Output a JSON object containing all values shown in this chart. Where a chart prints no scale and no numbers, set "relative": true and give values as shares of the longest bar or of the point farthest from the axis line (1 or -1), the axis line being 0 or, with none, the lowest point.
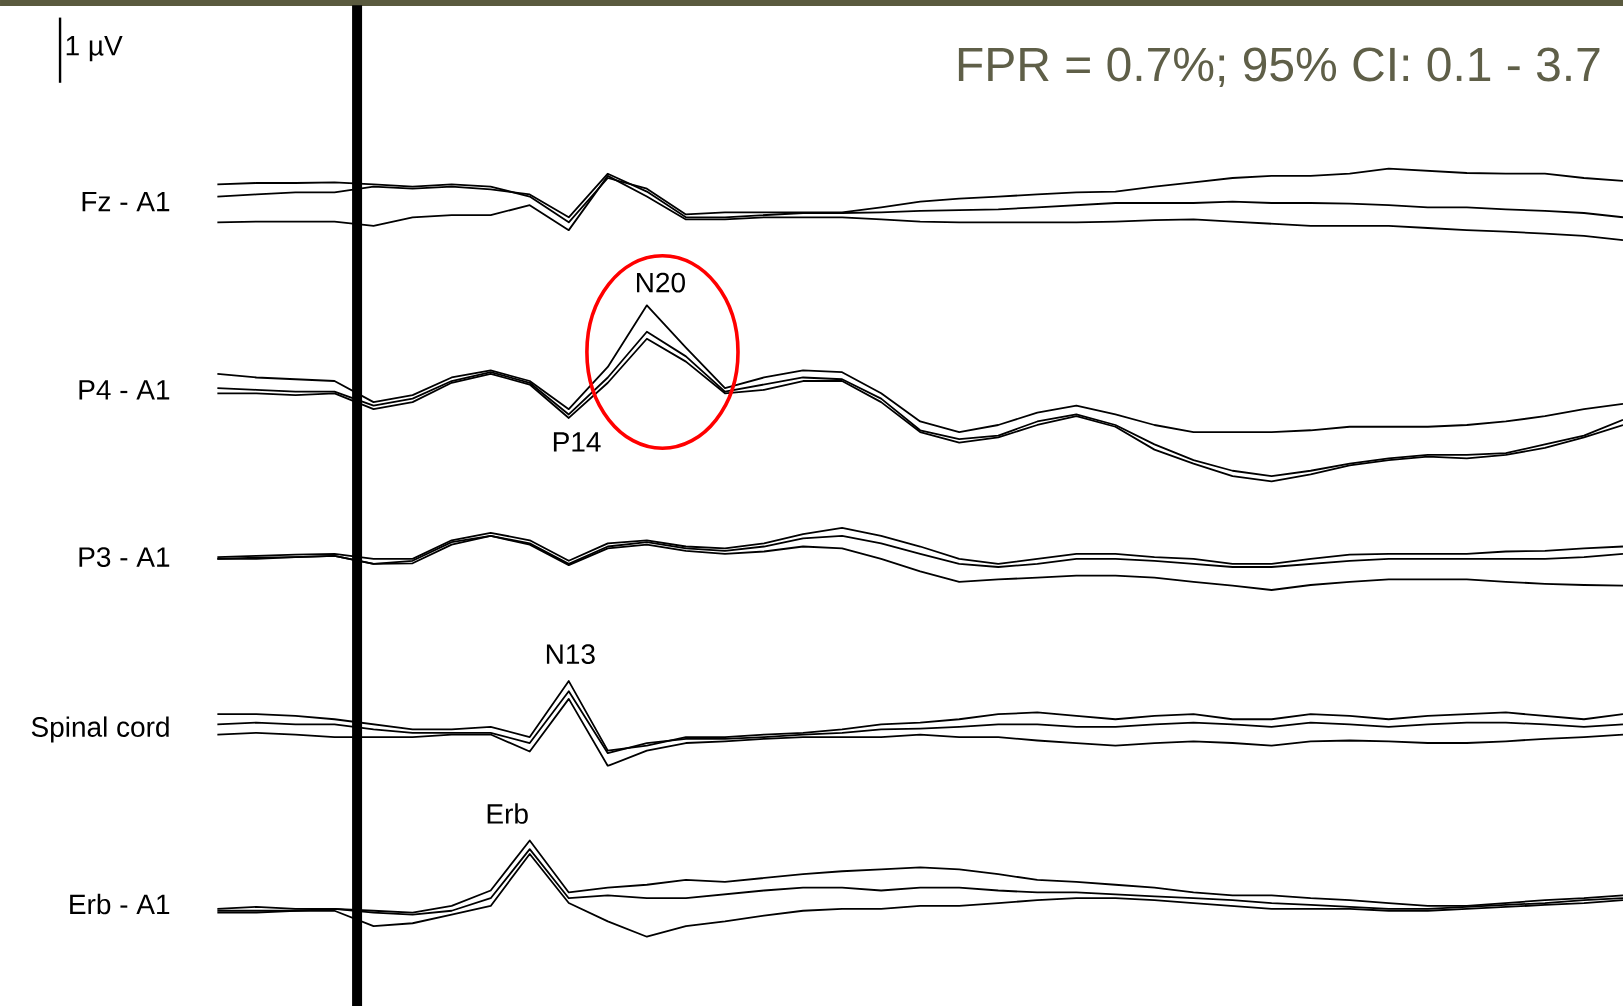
{
  "chart_data": [
    {
      "type": "line",
      "title": "FPR = 0.7%; 95% CI: 0.1 - 3.7",
      "ylabel": "Fz - A1",
      "relative": true,
      "annotations": [
        "1 µV"
      ],
      "categories": [
        null,
        null,
        null,
        null,
        null,
        null,
        null,
        null,
        null,
        null,
        null,
        null,
        null,
        null,
        null,
        null,
        null,
        null,
        null,
        null,
        null,
        null,
        null,
        null,
        null,
        null,
        null,
        null,
        null,
        null,
        null,
        null,
        null,
        null,
        null,
        null,
        null
      ],
      "series": [
        {
          "color": "#000000",
          "values": [
            0.78,
            0.8,
            0.8,
            0.81,
            0.78,
            0.75,
            0.78,
            0.75,
            0.61,
            0.25,
            0.87,
            0.72,
            0.36,
            0.39,
            0.39,
            0.39,
            0.39,
            0.46,
            0.54,
            0.58,
            0.61,
            0.64,
            0.67,
            0.68,
            0.75,
            0.81,
            0.87,
            0.9,
            0.9,
            0.93,
            1.0,
            0.97,
            0.94,
            0.93,
            0.93,
            0.87,
            0.83
          ]
        },
        {
          "color": "#000000",
          "values": [
            0.61,
            0.64,
            0.67,
            0.67,
            0.75,
            0.72,
            0.75,
            0.71,
            0.64,
            0.32,
            0.93,
            0.68,
            0.32,
            0.32,
            0.35,
            0.38,
            0.38,
            0.39,
            0.41,
            0.42,
            0.43,
            0.46,
            0.49,
            0.52,
            0.52,
            0.52,
            0.54,
            0.52,
            0.52,
            0.51,
            0.49,
            0.46,
            0.46,
            0.43,
            0.41,
            0.38,
            0.32
          ]
        },
        {
          "color": "#000000",
          "values": [
            0.25,
            0.26,
            0.26,
            0.26,
            0.2,
            0.32,
            0.35,
            0.35,
            0.49,
            0.14,
            0.9,
            0.61,
            0.29,
            0.29,
            0.32,
            0.32,
            0.32,
            0.29,
            0.26,
            0.25,
            0.25,
            0.25,
            0.25,
            0.26,
            0.28,
            0.29,
            0.26,
            0.23,
            0.2,
            0.2,
            0.2,
            0.17,
            0.14,
            0.12,
            0.09,
            0.06,
            0
          ]
        }
      ]
    },
    {
      "type": "line",
      "ylabel": "P4 - A1",
      "relative": true,
      "annotations": [
        "N20",
        "P14"
      ],
      "categories": [
        null,
        null,
        null,
        null,
        null,
        null,
        null,
        null,
        null,
        null,
        null,
        null,
        null,
        null,
        null,
        null,
        null,
        null,
        null,
        null,
        null,
        null,
        null,
        null,
        null,
        null,
        null,
        null,
        null,
        null,
        null,
        null,
        null,
        null,
        null,
        null,
        null
      ],
      "series": [
        {
          "color": "#000000",
          "values": [
            0.61,
            0.59,
            0.58,
            0.57,
            0.45,
            0.49,
            0.59,
            0.63,
            0.57,
            0.41,
            0.65,
            1.0,
            0.76,
            0.53,
            0.59,
            0.63,
            0.62,
            0.5,
            0.34,
            0.28,
            0.32,
            0.39,
            0.43,
            0.38,
            0.32,
            0.28,
            0.28,
            0.28,
            0.29,
            0.31,
            0.31,
            0.31,
            0.32,
            0.34,
            0.37,
            0.41,
            0.44
          ]
        },
        {
          "color": "#000000",
          "values": [
            0.53,
            0.52,
            0.51,
            0.51,
            0.43,
            0.47,
            0.57,
            0.62,
            0.56,
            0.38,
            0.59,
            0.85,
            0.71,
            0.51,
            0.55,
            0.59,
            0.58,
            0.47,
            0.29,
            0.24,
            0.26,
            0.34,
            0.38,
            0.32,
            0.21,
            0.12,
            0.06,
            0.03,
            0.06,
            0.1,
            0.13,
            0.15,
            0.15,
            0.16,
            0.21,
            0.26,
            0.35
          ]
        },
        {
          "color": "#000000",
          "values": [
            0.5,
            0.5,
            0.49,
            0.5,
            0.41,
            0.45,
            0.56,
            0.61,
            0.55,
            0.36,
            0.56,
            0.81,
            0.68,
            0.5,
            0.52,
            0.57,
            0.57,
            0.45,
            0.28,
            0.22,
            0.25,
            0.32,
            0.37,
            0.31,
            0.18,
            0.1,
            0.03,
            0,
            0.04,
            0.09,
            0.12,
            0.14,
            0.13,
            0.15,
            0.19,
            0.25,
            0.32
          ]
        }
      ]
    },
    {
      "type": "line",
      "ylabel": "P3 - A1",
      "relative": true,
      "categories": [
        null,
        null,
        null,
        null,
        null,
        null,
        null,
        null,
        null,
        null,
        null,
        null,
        null,
        null,
        null,
        null,
        null,
        null,
        null,
        null,
        null,
        null,
        null,
        null,
        null,
        null,
        null,
        null,
        null,
        null,
        null,
        null,
        null,
        null,
        null,
        null,
        null
      ],
      "series": [
        {
          "color": "#000000",
          "values": [
            0.53,
            0.55,
            0.57,
            0.58,
            0.5,
            0.5,
            0.8,
            0.92,
            0.8,
            0.47,
            0.75,
            0.8,
            0.7,
            0.67,
            0.75,
            0.9,
            1.0,
            0.87,
            0.7,
            0.5,
            0.42,
            0.5,
            0.58,
            0.58,
            0.53,
            0.5,
            0.42,
            0.42,
            0.5,
            0.57,
            0.58,
            0.58,
            0.58,
            0.62,
            0.63,
            0.67,
            0.7
          ]
        },
        {
          "color": "#000000",
          "values": [
            0.5,
            0.52,
            0.53,
            0.55,
            0.42,
            0.47,
            0.77,
            0.87,
            0.75,
            0.42,
            0.7,
            0.77,
            0.67,
            0.63,
            0.7,
            0.83,
            0.87,
            0.75,
            0.58,
            0.42,
            0.37,
            0.42,
            0.5,
            0.5,
            0.47,
            0.42,
            0.37,
            0.37,
            0.42,
            0.47,
            0.5,
            0.5,
            0.5,
            0.5,
            0.5,
            0.53,
            0.58
          ]
        },
        {
          "color": "#000000",
          "values": [
            0.5,
            0.5,
            0.53,
            0.55,
            0.42,
            0.43,
            0.73,
            0.87,
            0.73,
            0.4,
            0.67,
            0.73,
            0.63,
            0.58,
            0.62,
            0.7,
            0.67,
            0.5,
            0.3,
            0.13,
            0.17,
            0.2,
            0.23,
            0.23,
            0.2,
            0.13,
            0.07,
            0,
            0.08,
            0.13,
            0.17,
            0.17,
            0.17,
            0.13,
            0.1,
            0.08,
            0.07
          ]
        }
      ]
    },
    {
      "type": "line",
      "ylabel": "Spinal cord",
      "relative": true,
      "annotations": [
        "N13"
      ],
      "categories": [
        null,
        null,
        null,
        null,
        null,
        null,
        null,
        null,
        null,
        null,
        null,
        null,
        null,
        null,
        null,
        null,
        null,
        null,
        null,
        null,
        null,
        null,
        null,
        null,
        null,
        null,
        null,
        null,
        null,
        null,
        null,
        null,
        null,
        null,
        null,
        null,
        null
      ],
      "series": [
        {
          "color": "#000000",
          "values": [
            0.61,
            0.61,
            0.59,
            0.55,
            0.49,
            0.43,
            0.43,
            0.46,
            0.34,
            1.0,
            0.18,
            0.24,
            0.34,
            0.34,
            0.37,
            0.39,
            0.43,
            0.49,
            0.51,
            0.55,
            0.61,
            0.63,
            0.59,
            0.55,
            0.59,
            0.61,
            0.55,
            0.55,
            0.61,
            0.59,
            0.55,
            0.59,
            0.61,
            0.63,
            0.59,
            0.55,
            0.61
          ]
        },
        {
          "color": "#000000",
          "values": [
            0.49,
            0.51,
            0.49,
            0.49,
            0.43,
            0.39,
            0.39,
            0.39,
            0.27,
            0.88,
            0.15,
            0.27,
            0.32,
            0.32,
            0.34,
            0.37,
            0.39,
            0.43,
            0.44,
            0.46,
            0.49,
            0.49,
            0.46,
            0.46,
            0.49,
            0.51,
            0.49,
            0.46,
            0.51,
            0.49,
            0.46,
            0.49,
            0.51,
            0.51,
            0.49,
            0.46,
            0.49
          ]
        },
        {
          "color": "#000000",
          "values": [
            0.37,
            0.39,
            0.37,
            0.34,
            0.34,
            0.34,
            0.37,
            0.37,
            0.17,
            0.79,
            0,
            0.18,
            0.27,
            0.29,
            0.32,
            0.34,
            0.34,
            0.34,
            0.37,
            0.34,
            0.34,
            0.3,
            0.27,
            0.24,
            0.27,
            0.29,
            0.27,
            0.24,
            0.29,
            0.3,
            0.29,
            0.27,
            0.27,
            0.29,
            0.32,
            0.34,
            0.37
          ]
        }
      ]
    },
    {
      "type": "line",
      "ylabel": "Erb - A1",
      "relative": true,
      "annotations": [
        "Erb"
      ],
      "categories": [
        null,
        null,
        null,
        null,
        null,
        null,
        null,
        null,
        null,
        null,
        null,
        null,
        null,
        null,
        null,
        null,
        null,
        null,
        null,
        null,
        null,
        null,
        null,
        null,
        null,
        null,
        null,
        null,
        null,
        null,
        null,
        null,
        null,
        null,
        null,
        null,
        null
      ],
      "series": [
        {
          "color": "#000000",
          "values": [
            0.29,
            0.31,
            0.29,
            0.29,
            0.27,
            0.25,
            0.32,
            0.48,
            1.0,
            0.46,
            0.51,
            0.54,
            0.59,
            0.57,
            0.61,
            0.65,
            0.68,
            0.7,
            0.72,
            0.7,
            0.65,
            0.59,
            0.57,
            0.54,
            0.51,
            0.46,
            0.43,
            0.43,
            0.4,
            0.38,
            0.35,
            0.32,
            0.32,
            0.35,
            0.38,
            0.4,
            0.43
          ]
        },
        {
          "color": "#000000",
          "values": [
            0.27,
            0.27,
            0.27,
            0.29,
            0.25,
            0.23,
            0.27,
            0.4,
            0.91,
            0.4,
            0.43,
            0.4,
            0.4,
            0.44,
            0.48,
            0.51,
            0.51,
            0.48,
            0.51,
            0.51,
            0.48,
            0.46,
            0.46,
            0.44,
            0.42,
            0.4,
            0.38,
            0.35,
            0.33,
            0.31,
            0.29,
            0.29,
            0.31,
            0.33,
            0.35,
            0.38,
            0.4
          ]
        },
        {
          "color": "#000000",
          "values": [
            0.25,
            0.25,
            0.27,
            0.27,
            0.11,
            0.14,
            0.23,
            0.32,
            0.86,
            0.35,
            0.16,
            0,
            0.11,
            0.16,
            0.22,
            0.27,
            0.29,
            0.29,
            0.32,
            0.32,
            0.35,
            0.38,
            0.4,
            0.4,
            0.38,
            0.35,
            0.32,
            0.29,
            0.29,
            0.29,
            0.27,
            0.27,
            0.29,
            0.31,
            0.33,
            0.35,
            0.38
          ]
        }
      ]
    }
  ]
}
